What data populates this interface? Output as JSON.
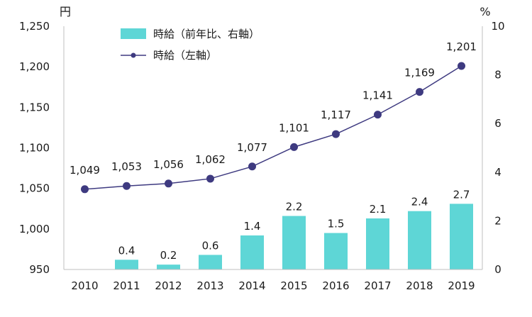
{
  "chart_data": {
    "type": "bar+line",
    "categories": [
      "2010",
      "2011",
      "2012",
      "2013",
      "2014",
      "2015",
      "2016",
      "2017",
      "2018",
      "2019"
    ],
    "series": [
      {
        "name": "時給（前年比、右軸）",
        "type": "bar",
        "axis": "right",
        "color": "#5ed6d6",
        "values": [
          null,
          0.4,
          0.2,
          0.6,
          1.4,
          2.2,
          1.5,
          2.1,
          2.4,
          2.7
        ],
        "labels": [
          "",
          "0.4",
          "0.2",
          "0.6",
          "1.4",
          "2.2",
          "1.5",
          "2.1",
          "2.4",
          "2.7"
        ]
      },
      {
        "name": "時給（左軸）",
        "type": "line",
        "axis": "left",
        "color": "#3e3a80",
        "values": [
          1049,
          1053,
          1056,
          1062,
          1077,
          1101,
          1117,
          1141,
          1169,
          1201
        ],
        "labels": [
          "1,049",
          "1,053",
          "1,056",
          "1,062",
          "1,077",
          "1,101",
          "1,117",
          "1,141",
          "1,169",
          "1,201"
        ]
      }
    ],
    "left_axis": {
      "unit": "円",
      "ylim": [
        950,
        1250
      ],
      "ticks": [
        950,
        1000,
        1050,
        1100,
        1150,
        1200,
        1250
      ],
      "tick_labels": [
        "950",
        "1,000",
        "1,050",
        "1,100",
        "1,150",
        "1,200",
        "1,250"
      ]
    },
    "right_axis": {
      "unit": "%",
      "ylim": [
        0,
        10
      ],
      "ticks": [
        0,
        2,
        4,
        6,
        8,
        10
      ],
      "tick_labels": [
        "0",
        "2",
        "4",
        "6",
        "8",
        "10"
      ]
    },
    "legend_position": "top-left",
    "grid": false
  }
}
